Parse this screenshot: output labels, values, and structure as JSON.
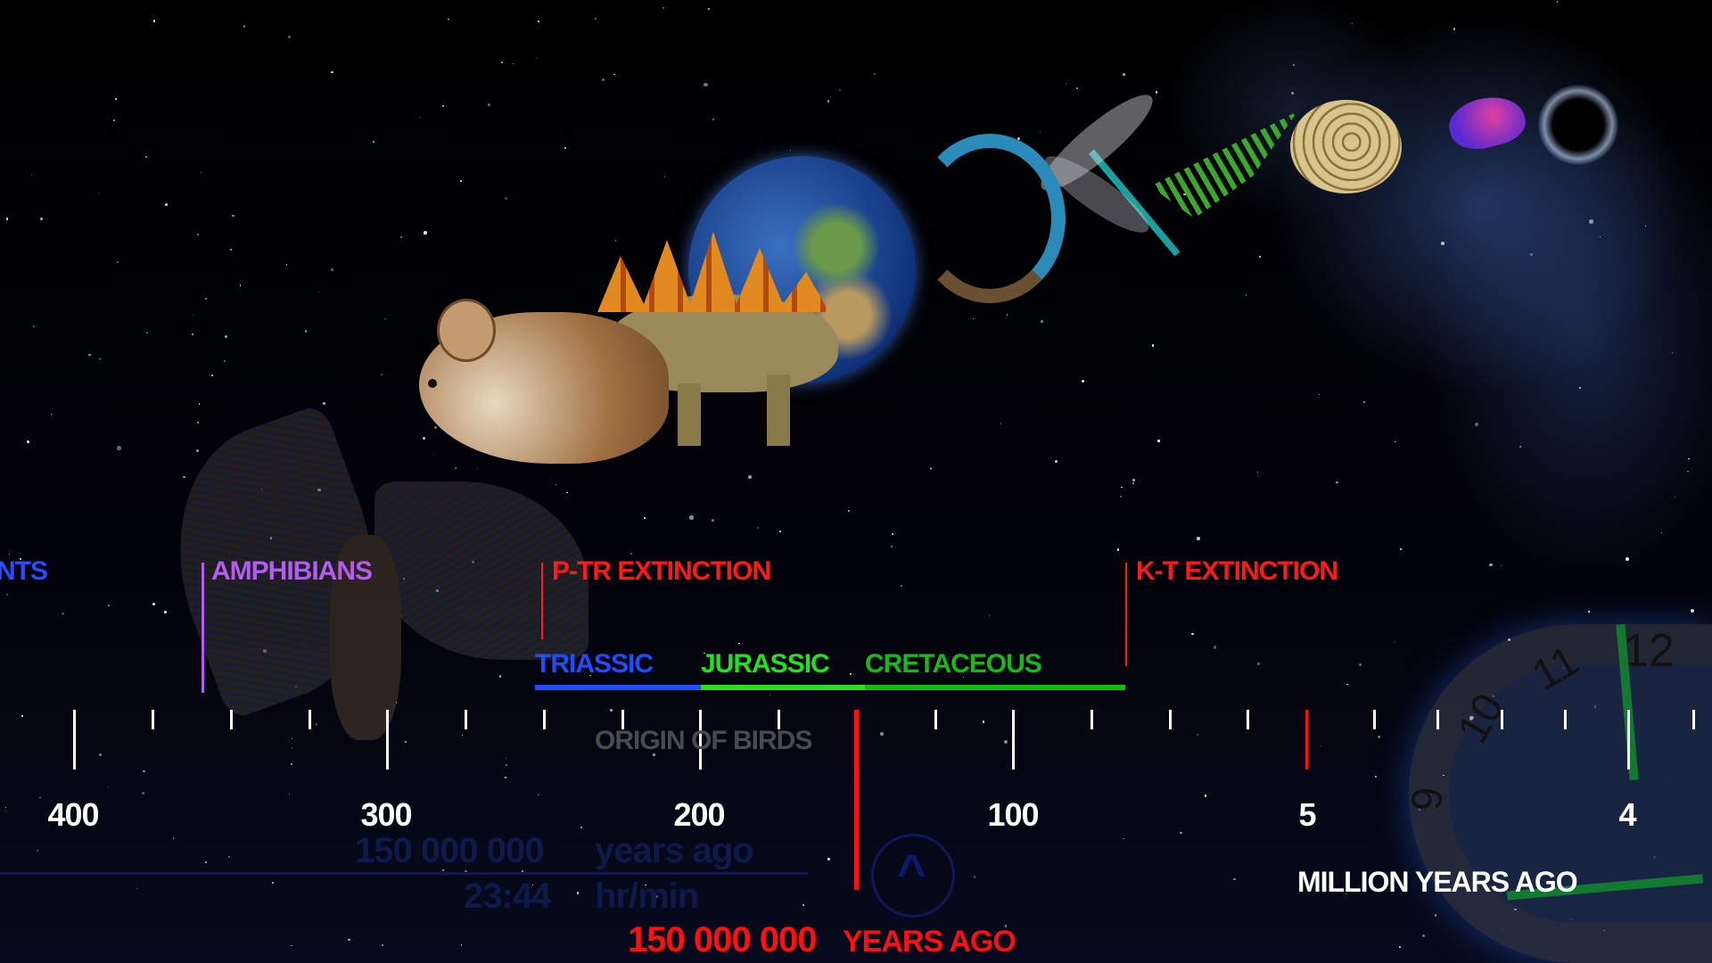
{
  "events": [
    {
      "label": "NTS",
      "color": "#2a4cff"
    },
    {
      "label": "AMPHIBIANS",
      "color": "#b35cf0"
    },
    {
      "label": "P-TR EXTINCTION",
      "color": "#ff1a1a"
    },
    {
      "label": "K-T EXTINCTION",
      "color": "#ff1a1a"
    }
  ],
  "periods": [
    {
      "label": "TRIASSIC",
      "color": "#1f4dff"
    },
    {
      "label": "JURASSIC",
      "color": "#22e022"
    },
    {
      "label": "CRETACEOUS",
      "color": "#18b818"
    }
  ],
  "origin_label": "ORIGIN OF BIRDS",
  "scale_numbers": [
    "400",
    "300",
    "200",
    "100",
    "5",
    "4"
  ],
  "units_label": "MILLION YEARS AGO",
  "current": {
    "value": "150 000 000",
    "unit": "YEARS AGO",
    "color": "#ff1010"
  },
  "faded_readout": {
    "years": "150 000 000",
    "years_unit": "years ago",
    "time": "23:44",
    "time_unit": "hr/min"
  },
  "clock": {
    "numerals": [
      "12",
      "11",
      "10",
      "9"
    ]
  },
  "images": [
    "mouse",
    "stegosaurus",
    "earth",
    "lizard",
    "dragonfly",
    "fern",
    "ammonite",
    "arthropod",
    "black-hole",
    "archaeopteryx"
  ]
}
